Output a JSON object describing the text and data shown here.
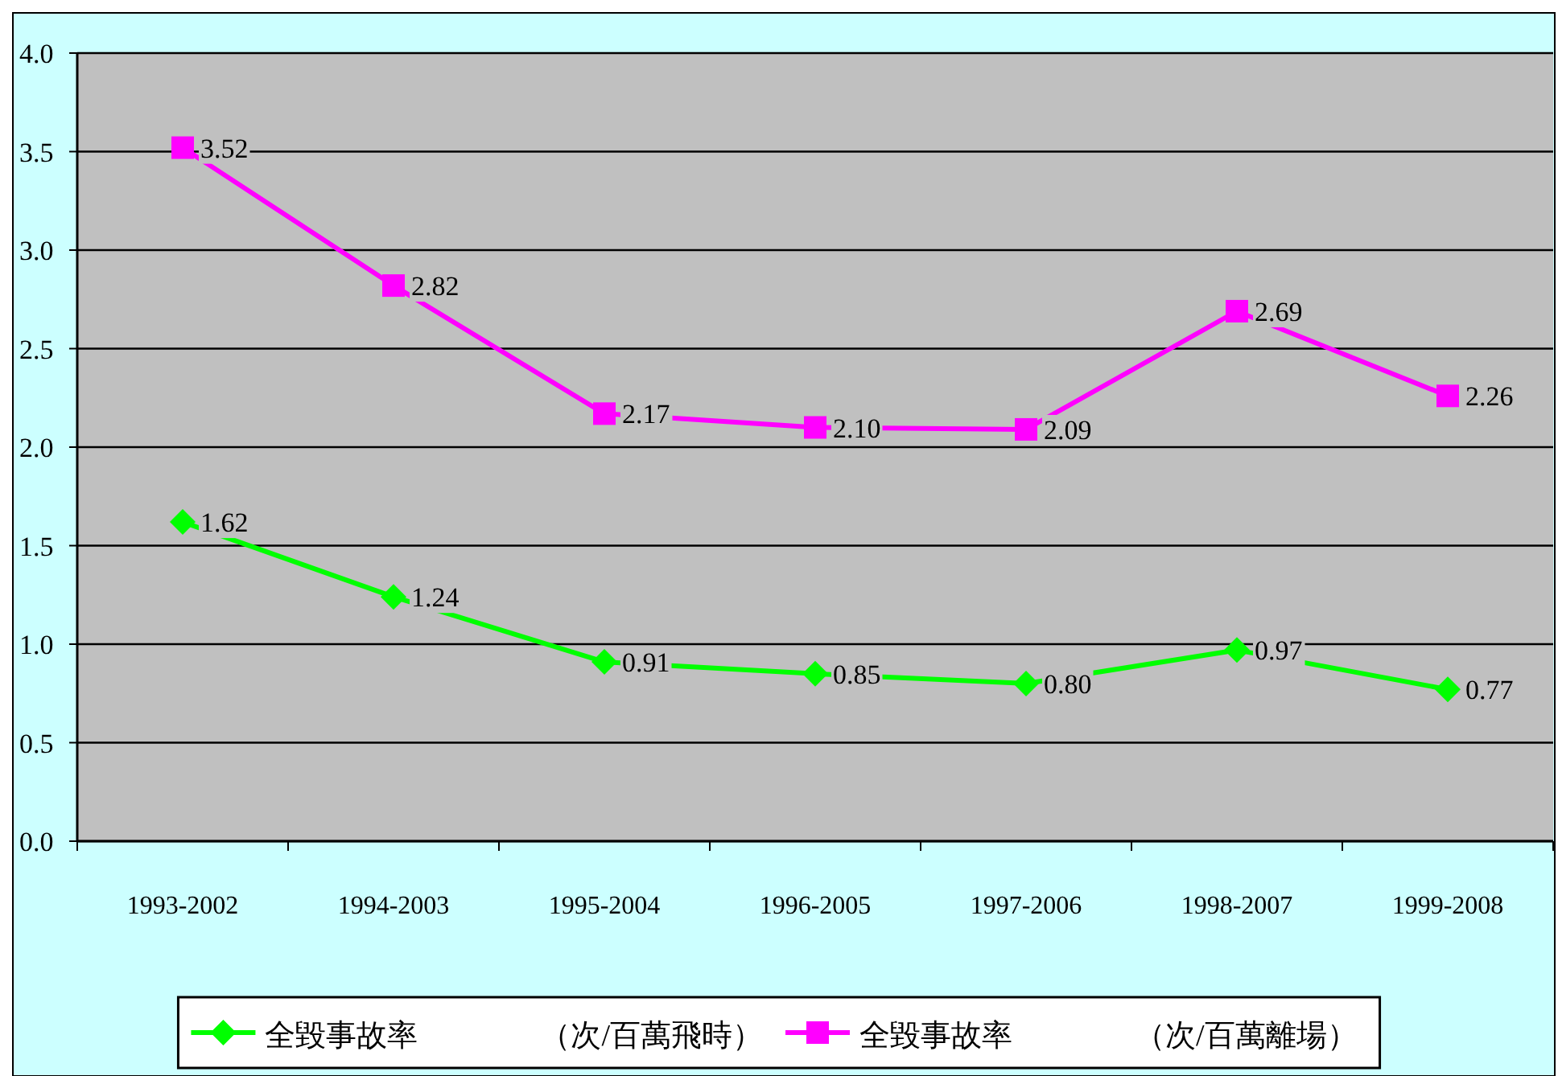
{
  "chart_data": {
    "type": "line",
    "categories": [
      "1993-2002",
      "1994-2003",
      "1995-2004",
      "1996-2005",
      "1997-2006",
      "1998-2007",
      "1999-2008"
    ],
    "series": [
      {
        "name": "全毀事故率　　　　（次/百萬飛時）",
        "color": "#00ff00",
        "marker": "diamond",
        "values": [
          1.62,
          1.24,
          0.91,
          0.85,
          0.8,
          0.97,
          0.77
        ],
        "value_labels": [
          "1.62",
          "1.24",
          "0.91",
          "0.85",
          "0.80",
          "0.97",
          "0.77"
        ]
      },
      {
        "name": "全毀事故率　　　　（次/百萬離場）",
        "color": "#ff00ff",
        "marker": "square",
        "values": [
          3.52,
          2.82,
          2.17,
          2.1,
          2.09,
          2.69,
          2.26
        ],
        "value_labels": [
          "3.52",
          "2.82",
          "2.17",
          "2.10",
          "2.09",
          "2.69",
          "2.26"
        ]
      }
    ],
    "ylim": [
      0,
      4
    ],
    "yticks": [
      {
        "value": 0,
        "label": "0.0"
      },
      {
        "value": 0.5,
        "label": "0.5"
      },
      {
        "value": 1,
        "label": "1.0"
      },
      {
        "value": 1.5,
        "label": "1.5"
      },
      {
        "value": 2,
        "label": "2.0"
      },
      {
        "value": 2.5,
        "label": "2.5"
      },
      {
        "value": 3,
        "label": "3.0"
      },
      {
        "value": 3.5,
        "label": "3.5"
      },
      {
        "value": 4,
        "label": "4.0"
      }
    ],
    "grid": "y",
    "legend": "bottom",
    "line_style": "solid"
  }
}
